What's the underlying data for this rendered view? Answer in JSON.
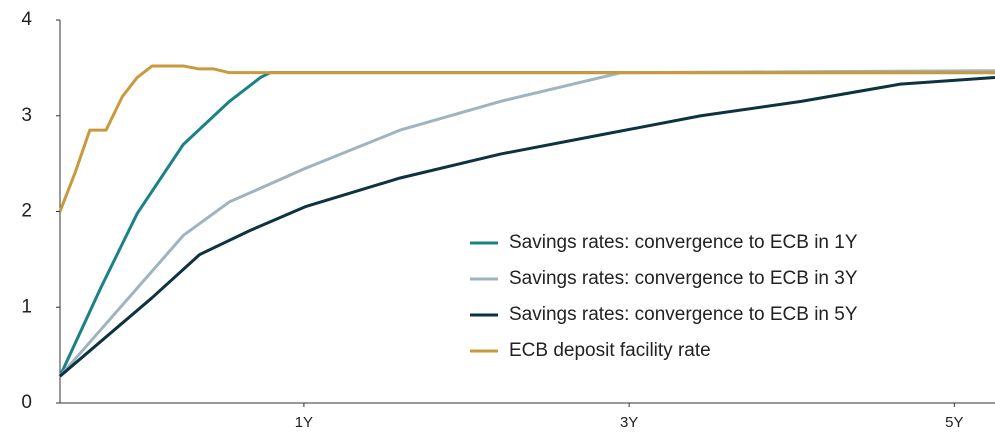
{
  "chart_data": {
    "type": "line",
    "xlim": [
      0,
      69
    ],
    "xticks": [
      {
        "value": 18,
        "label": "1Y"
      },
      {
        "value": 42,
        "label": "3Y"
      },
      {
        "value": 66,
        "label": "5Y"
      }
    ],
    "ylim": [
      0,
      4
    ],
    "yticks": [
      0,
      1,
      2,
      3,
      4
    ],
    "grid": false,
    "legend": "lower right",
    "series": [
      {
        "name": "Savings rates: convergence to ECB in 1Y",
        "color": "#1a8286",
        "x": [
          0,
          3,
          5.7,
          9.1,
          12.5,
          14.8,
          15.5,
          69
        ],
        "values": [
          0.28,
          1.2,
          1.98,
          2.7,
          3.15,
          3.4,
          3.45,
          3.45
        ]
      },
      {
        "name": "Savings rates: convergence to ECB in 3Y",
        "color": "#9fb3c0",
        "x": [
          0,
          5.7,
          9.1,
          12.5,
          18.1,
          25.1,
          32.5,
          41.4,
          69
        ],
        "values": [
          0.28,
          1.2,
          1.75,
          2.1,
          2.45,
          2.85,
          3.15,
          3.45,
          3.47
        ]
      },
      {
        "name": "Savings rates: convergence to ECB in 5Y",
        "color": "#0d3340",
        "x": [
          0,
          6.8,
          10.3,
          14,
          18.1,
          25.1,
          32.5,
          39.9,
          47.3,
          54.7,
          62,
          69
        ],
        "values": [
          0.28,
          1.1,
          1.55,
          1.8,
          2.05,
          2.35,
          2.6,
          2.8,
          3.0,
          3.15,
          3.33,
          3.4
        ]
      },
      {
        "name": "ECB deposit facility rate",
        "color": "#c99a3c",
        "x": [
          0,
          1.1,
          2.2,
          3.4,
          4.6,
          5.7,
          6.8,
          8,
          9.1,
          10.2,
          11.3,
          12.5,
          69
        ],
        "values": [
          2.0,
          2.4,
          2.85,
          2.85,
          3.2,
          3.4,
          3.52,
          3.52,
          3.52,
          3.49,
          3.49,
          3.45,
          3.45
        ]
      }
    ]
  }
}
